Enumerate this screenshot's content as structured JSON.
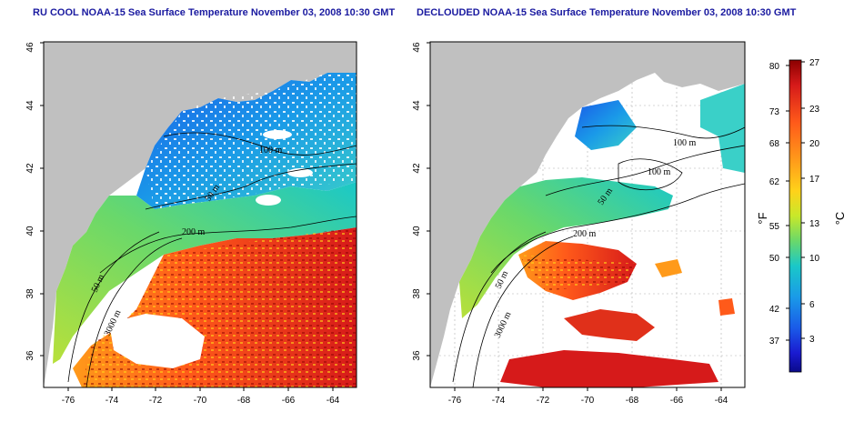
{
  "panels": [
    {
      "id": "left",
      "title": "RU COOL NOAA-15 Sea Surface Temperature November 03, 2008 10:30 GMT",
      "x_ticks": [
        "-76",
        "-74",
        "-72",
        "-70",
        "-68",
        "-66",
        "-64"
      ],
      "y_ticks": [
        "36",
        "38",
        "40",
        "42",
        "44",
        "46"
      ],
      "contour_labels": [
        "100 m",
        "50 m",
        "200 m",
        "50 m",
        "3000 m"
      ]
    },
    {
      "id": "right",
      "title": "DECLOUDED NOAA-15 Sea Surface Temperature November 03, 2008 10:30 GMT",
      "x_ticks": [
        "-76",
        "-74",
        "-72",
        "-70",
        "-68",
        "-66",
        "-64"
      ],
      "y_ticks": [
        "36",
        "38",
        "40",
        "42",
        "44",
        "46"
      ],
      "contour_labels": [
        "100 m",
        "100 m",
        "50 m",
        "200 m",
        "50 m",
        "3000 m"
      ]
    }
  ],
  "colorbar": {
    "f_ticks": [
      "80",
      "73",
      "68",
      "62",
      "55",
      "50",
      "42",
      "37"
    ],
    "c_ticks": [
      "27",
      "23",
      "20",
      "17",
      "13",
      "10",
      "6",
      "3"
    ],
    "f_label": "°F",
    "c_label": "°C",
    "colors": [
      "#8b0000",
      "#d61a1a",
      "#ff5a1a",
      "#ff9a1a",
      "#ffd21a",
      "#d8e81a",
      "#8fe04a",
      "#3ad08a",
      "#1ac8c8",
      "#1a9ae8",
      "#1a5ae8",
      "#1a1ad0",
      "#0a0a8a"
    ]
  }
}
